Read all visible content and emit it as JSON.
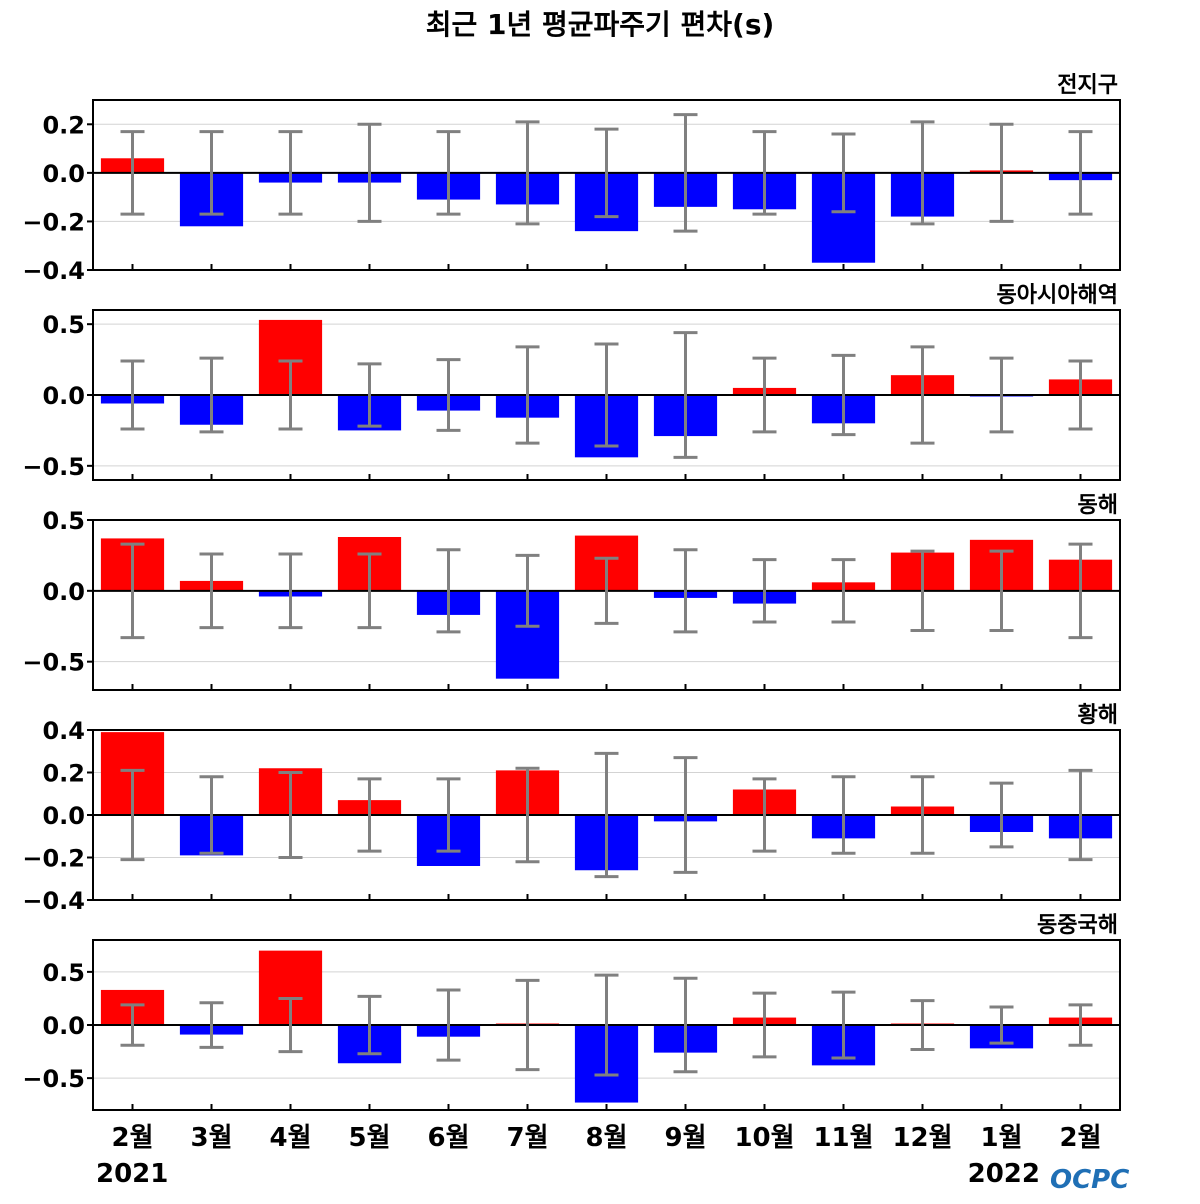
{
  "title": "최근 1년 평균파주기 편차(s)",
  "year_start": "2021",
  "year_end": "2022",
  "logo_text": "OCPC",
  "colors": {
    "positive": "#ff0000",
    "negative": "#0000ff",
    "error_bar": "#808080",
    "zero_line": "#000000",
    "grid": "#d3d3d3",
    "logo": "#1f6fb5"
  },
  "chart_data": [
    {
      "type": "bar",
      "title": "전지구",
      "categories": [
        "2월",
        "3월",
        "4월",
        "5월",
        "6월",
        "7월",
        "8월",
        "9월",
        "10월",
        "11월",
        "12월",
        "1월",
        "2월"
      ],
      "values": [
        0.06,
        -0.22,
        -0.04,
        -0.04,
        -0.11,
        -0.13,
        -0.24,
        -0.14,
        -0.15,
        -0.37,
        -0.18,
        0.01,
        -0.03
      ],
      "error_bars": [
        0.17,
        0.17,
        0.17,
        0.2,
        0.17,
        0.21,
        0.18,
        0.24,
        0.17,
        0.16,
        0.21,
        0.2,
        0.17
      ],
      "ylim": [
        -0.4,
        0.3
      ],
      "yticks": [
        -0.4,
        -0.2,
        0.0,
        0.2
      ],
      "ytick_labels": [
        "−0.4",
        "−0.2",
        "0.0",
        "0.2"
      ],
      "grid": true
    },
    {
      "type": "bar",
      "title": "동아시아해역",
      "categories": [
        "2월",
        "3월",
        "4월",
        "5월",
        "6월",
        "7월",
        "8월",
        "9월",
        "10월",
        "11월",
        "12월",
        "1월",
        "2월"
      ],
      "values": [
        -0.06,
        -0.21,
        0.53,
        -0.25,
        -0.11,
        -0.16,
        -0.44,
        -0.29,
        0.05,
        -0.2,
        0.14,
        -0.01,
        0.11
      ],
      "error_bars": [
        0.24,
        0.26,
        0.24,
        0.22,
        0.25,
        0.34,
        0.36,
        0.44,
        0.26,
        0.28,
        0.34,
        0.26,
        0.24
      ],
      "ylim": [
        -0.6,
        0.6
      ],
      "yticks": [
        -0.5,
        0.0,
        0.5
      ],
      "ytick_labels": [
        "−0.5",
        "0.0",
        "0.5"
      ],
      "grid": true
    },
    {
      "type": "bar",
      "title": "동해",
      "categories": [
        "2월",
        "3월",
        "4월",
        "5월",
        "6월",
        "7월",
        "8월",
        "9월",
        "10월",
        "11월",
        "12월",
        "1월",
        "2월"
      ],
      "values": [
        0.37,
        0.07,
        -0.04,
        0.38,
        -0.17,
        -0.62,
        0.39,
        -0.05,
        -0.09,
        0.06,
        0.27,
        0.36,
        0.22
      ],
      "error_bars": [
        0.33,
        0.26,
        0.26,
        0.26,
        0.29,
        0.25,
        0.23,
        0.29,
        0.22,
        0.22,
        0.28,
        0.28,
        0.33
      ],
      "ylim": [
        -0.7,
        0.5
      ],
      "yticks": [
        -0.5,
        0.0,
        0.5
      ],
      "ytick_labels": [
        "−0.5",
        "0.0",
        "0.5"
      ],
      "grid": true
    },
    {
      "type": "bar",
      "title": "황해",
      "categories": [
        "2월",
        "3월",
        "4월",
        "5월",
        "6월",
        "7월",
        "8월",
        "9월",
        "10월",
        "11월",
        "12월",
        "1월",
        "2월"
      ],
      "values": [
        0.39,
        -0.19,
        0.22,
        0.07,
        -0.24,
        0.21,
        -0.26,
        -0.03,
        0.12,
        -0.11,
        0.04,
        -0.08,
        -0.11
      ],
      "error_bars": [
        0.21,
        0.18,
        0.2,
        0.17,
        0.17,
        0.22,
        0.29,
        0.27,
        0.17,
        0.18,
        0.18,
        0.15,
        0.21
      ],
      "ylim": [
        -0.4,
        0.4
      ],
      "yticks": [
        -0.4,
        -0.2,
        0.0,
        0.2,
        0.4
      ],
      "ytick_labels": [
        "−0.4",
        "−0.2",
        "0.0",
        "0.2",
        "0.4"
      ],
      "grid": true
    },
    {
      "type": "bar",
      "title": "동중국해",
      "categories": [
        "2월",
        "3월",
        "4월",
        "5월",
        "6월",
        "7월",
        "8월",
        "9월",
        "10월",
        "11월",
        "12월",
        "1월",
        "2월"
      ],
      "values": [
        0.33,
        -0.09,
        0.7,
        -0.36,
        -0.11,
        0.0,
        -0.73,
        -0.26,
        0.07,
        -0.38,
        0.0,
        -0.22,
        0.07
      ],
      "error_bars": [
        0.19,
        0.21,
        0.25,
        0.27,
        0.33,
        0.42,
        0.47,
        0.44,
        0.3,
        0.31,
        0.23,
        0.17,
        0.19
      ],
      "ylim": [
        -0.8,
        0.8
      ],
      "yticks": [
        -0.5,
        0.0,
        0.5
      ],
      "ytick_labels": [
        "−0.5",
        "0.0",
        "0.5"
      ],
      "grid": true
    }
  ]
}
